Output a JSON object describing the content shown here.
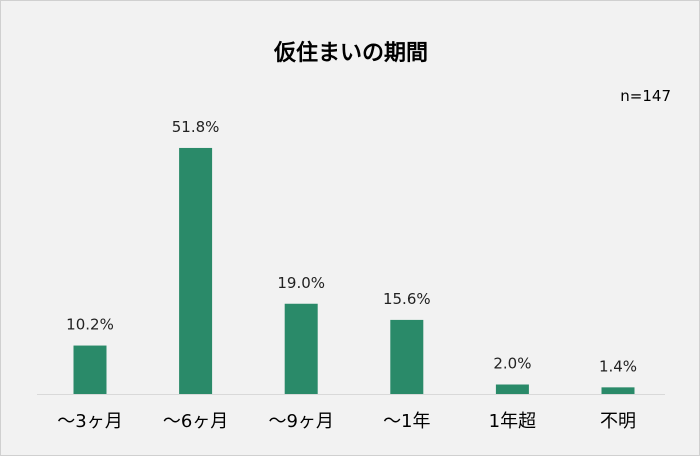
{
  "chart_data": {
    "type": "bar",
    "title": "仮住まいの期間",
    "note": "n=147",
    "categories": [
      "～3ヶ月",
      "～6ヶ月",
      "～9ヶ月",
      "～1年",
      "1年超",
      "不明"
    ],
    "values": [
      10.2,
      51.8,
      19.0,
      15.6,
      2.0,
      1.4
    ],
    "value_labels": [
      "10.2%",
      "51.8%",
      "19.0%",
      "15.6%",
      "2.0%",
      "1.4%"
    ],
    "unit": "%",
    "ylim": [
      0,
      55
    ],
    "grid": false,
    "legend": "none",
    "bar_color": "#2a8a69",
    "background": "#f2f2f2"
  }
}
